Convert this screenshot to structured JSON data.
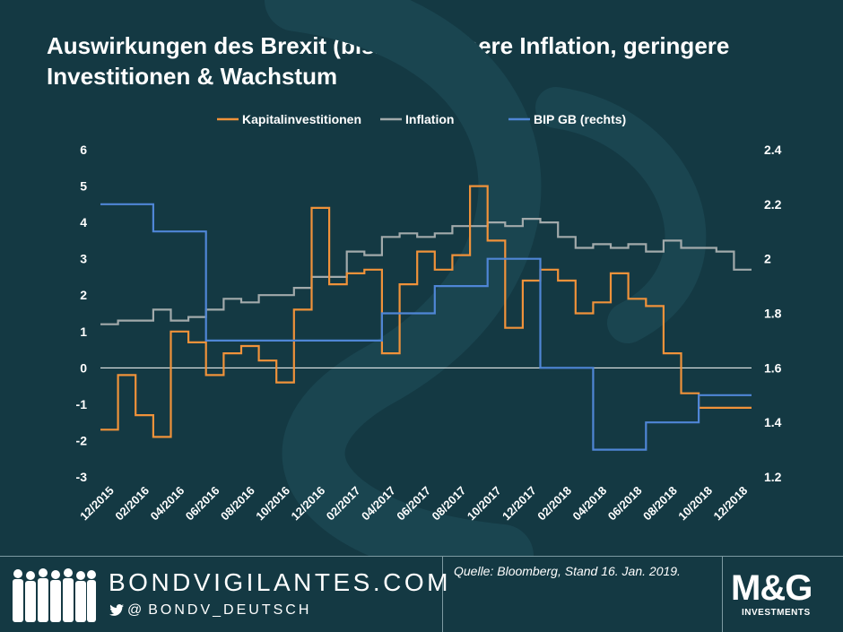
{
  "title_line1": "Auswirkungen des Brexit (bisher): Höhere Inflation, geringere",
  "title_line2": "Investitionen & Wachstum",
  "footer": {
    "site": "BONDVIGILANTES.COM",
    "handle": "BONDV_DEUTSCH",
    "handle_prefix": "@",
    "source": "Quelle: Bloomberg, Stand 16. Jan. 2019.",
    "logo_main": "M&G",
    "logo_sub": "INVESTMENTS"
  },
  "chart_data": {
    "type": "line",
    "step": true,
    "title": "Auswirkungen des Brexit (bisher): Höhere Inflation, geringere Investitionen & Wachstum",
    "x": [
      "12/2015",
      "01/2016",
      "02/2016",
      "03/2016",
      "04/2016",
      "05/2016",
      "06/2016",
      "07/2016",
      "08/2016",
      "09/2016",
      "10/2016",
      "11/2016",
      "12/2016",
      "01/2017",
      "02/2017",
      "03/2017",
      "04/2017",
      "05/2017",
      "06/2017",
      "07/2017",
      "08/2017",
      "09/2017",
      "10/2017",
      "11/2017",
      "12/2017",
      "01/2018",
      "02/2018",
      "03/2018",
      "04/2018",
      "05/2018",
      "06/2018",
      "07/2018",
      "08/2018",
      "09/2018",
      "10/2018",
      "11/2018",
      "12/2018"
    ],
    "xtick_labels": [
      "12/2015",
      "02/2016",
      "04/2016",
      "06/2016",
      "08/2016",
      "10/2016",
      "12/2016",
      "02/2017",
      "04/2017",
      "06/2017",
      "08/2017",
      "10/2017",
      "12/2017",
      "02/2018",
      "04/2018",
      "06/2018",
      "08/2018",
      "10/2018",
      "12/2018"
    ],
    "left_axis": {
      "min": -3,
      "max": 6,
      "ticks": [
        "-3",
        "-2",
        "-1",
        "0",
        "1",
        "2",
        "3",
        "4",
        "5",
        "6"
      ]
    },
    "right_axis": {
      "min": 1.2,
      "max": 2.4,
      "ticks": [
        "1.2",
        "1.4",
        "1.6",
        "1.8",
        "2",
        "2.2",
        "2.4"
      ]
    },
    "legend_position": "top-center",
    "series": [
      {
        "name": "Kapitalinvestitionen",
        "axis": "left",
        "color": "#f0923a",
        "values": [
          -1.7,
          -0.2,
          -1.3,
          -1.9,
          1.0,
          0.7,
          -0.2,
          0.4,
          0.6,
          0.2,
          -0.4,
          1.6,
          4.4,
          2.3,
          2.6,
          2.7,
          0.4,
          2.3,
          3.2,
          2.7,
          3.1,
          5.0,
          3.5,
          1.1,
          2.4,
          2.7,
          2.4,
          1.5,
          1.8,
          2.6,
          1.9,
          1.7,
          0.4,
          -0.7,
          -1.1,
          -1.1,
          -1.1
        ]
      },
      {
        "name": "Inflation",
        "axis": "left",
        "color": "#a2aaab",
        "values": [
          1.2,
          1.3,
          1.3,
          1.6,
          1.3,
          1.4,
          1.6,
          1.9,
          1.8,
          2.0,
          2.0,
          2.2,
          2.5,
          2.5,
          3.2,
          3.1,
          3.6,
          3.7,
          3.6,
          3.7,
          3.9,
          3.9,
          4.0,
          3.9,
          4.1,
          4.0,
          3.6,
          3.3,
          3.4,
          3.3,
          3.4,
          3.2,
          3.5,
          3.3,
          3.3,
          3.2,
          2.7
        ]
      },
      {
        "name": "BIP GB (rechts)",
        "axis": "right",
        "color": "#4f86d6",
        "values": [
          2.2,
          2.2,
          2.2,
          2.1,
          2.1,
          2.1,
          1.7,
          1.7,
          1.7,
          1.7,
          1.7,
          1.7,
          1.7,
          1.7,
          1.7,
          1.7,
          1.8,
          1.8,
          1.8,
          1.9,
          1.9,
          1.9,
          2.0,
          2.0,
          2.0,
          1.6,
          1.6,
          1.6,
          1.3,
          1.3,
          1.3,
          1.4,
          1.4,
          1.4,
          1.5,
          1.5,
          1.5
        ]
      }
    ],
    "zero_line": true
  }
}
